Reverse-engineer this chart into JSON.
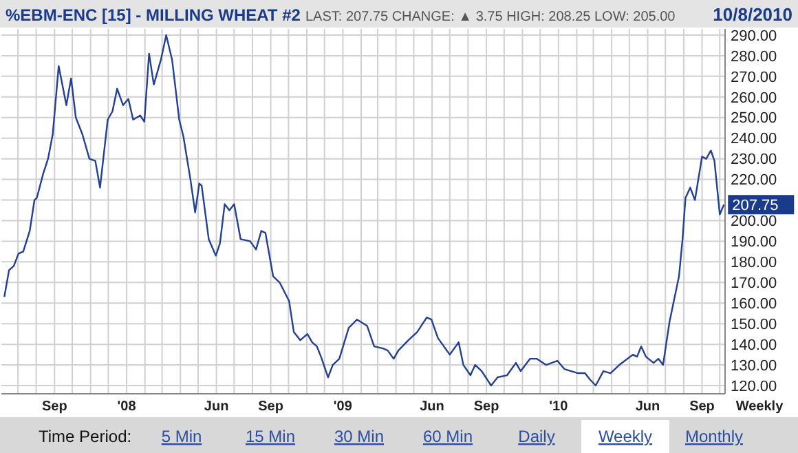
{
  "chart_data": {
    "type": "line",
    "title": "%EBM-ENC [15] - MILLING WHEAT #2",
    "subtitle": "LAST: 207.75  CHANGE: ▲ 3.75  HIGH: 208.25  LOW: 205.00",
    "annotations": [
      "10/8/2010",
      "Weekly",
      {
        "text": "207.75",
        "x": "2010-10-08",
        "y": 207.75
      },
      "Time Period:",
      "5 Min",
      "15 Min",
      "30 Min",
      "60 Min",
      "Daily",
      "Weekly",
      "Monthly"
    ],
    "x": [
      "2007-06-08",
      "2007-06-16",
      "2007-06-24",
      "2007-07-02",
      "2007-07-10",
      "2007-07-21",
      "2007-07-29",
      "2007-08-02",
      "2007-08-13",
      "2007-08-21",
      "2007-08-29",
      "2007-09-08",
      "2007-09-21",
      "2007-09-29",
      "2007-10-07",
      "2007-10-18",
      "2007-10-30",
      "2007-11-09",
      "2007-11-17",
      "2007-11-30",
      "2007-12-08",
      "2007-12-16",
      "2007-12-26",
      "2008-01-04",
      "2008-01-12",
      "2008-01-24",
      "2008-01-31",
      "2008-02-08",
      "2008-02-16",
      "2008-02-28",
      "2008-03-08",
      "2008-03-18",
      "2008-03-30",
      "2008-04-06",
      "2008-04-18",
      "2008-04-26",
      "2008-05-03",
      "2008-05-07",
      "2008-05-19",
      "2008-05-31",
      "2008-06-07",
      "2008-06-15",
      "2008-06-23",
      "2008-07-01",
      "2008-07-12",
      "2008-07-28",
      "2008-08-07",
      "2008-08-16",
      "2008-08-23",
      "2008-09-05",
      "2008-09-16",
      "2008-10-02",
      "2008-10-10",
      "2008-10-21",
      "2008-11-02",
      "2008-11-10",
      "2008-11-18",
      "2008-11-25",
      "2008-12-07",
      "2008-12-15",
      "2008-12-26",
      "2009-01-11",
      "2009-01-25",
      "2009-02-11",
      "2009-02-23",
      "2009-03-10",
      "2009-03-18",
      "2009-03-28",
      "2009-04-05",
      "2009-04-22",
      "2009-05-07",
      "2009-05-23",
      "2009-05-31",
      "2009-06-11",
      "2009-07-01",
      "2009-07-16",
      "2009-07-24",
      "2009-08-05",
      "2009-08-13",
      "2009-08-24",
      "2009-09-09",
      "2009-09-20",
      "2009-10-06",
      "2009-10-21",
      "2009-10-29",
      "2009-11-14",
      "2009-11-25",
      "2009-12-11",
      "2009-12-30",
      "2010-01-11",
      "2010-02-03",
      "2010-02-15",
      "2010-02-23",
      "2010-03-05",
      "2010-03-18",
      "2010-03-30",
      "2010-04-14",
      "2010-05-07",
      "2010-05-14",
      "2010-05-21",
      "2010-05-29",
      "2010-06-11",
      "2010-06-19",
      "2010-06-27",
      "2010-07-08",
      "2010-07-24",
      "2010-07-30",
      "2010-08-04",
      "2010-08-12",
      "2010-08-20",
      "2010-09-01",
      "2010-09-08",
      "2010-09-16",
      "2010-09-22",
      "2010-10-01",
      "2010-10-08"
    ],
    "series": [
      {
        "color": "#24408e",
        "values": [
          163,
          176,
          178,
          184,
          185,
          195,
          210,
          211,
          223,
          230,
          242,
          275,
          256,
          269,
          250,
          242,
          230,
          229,
          216,
          249,
          253,
          264,
          256,
          259,
          249,
          251,
          248,
          281,
          266,
          278,
          290,
          278,
          249,
          241,
          220,
          204,
          218,
          217,
          191,
          183,
          189,
          208,
          205,
          208,
          191,
          190,
          186,
          195,
          194,
          173,
          170,
          161,
          146,
          142,
          145,
          141,
          139,
          134,
          124,
          130,
          133,
          148,
          152,
          149,
          139,
          138,
          137,
          133,
          137,
          142,
          146,
          153,
          152,
          143,
          135,
          141,
          130,
          125,
          130,
          127,
          120,
          124,
          125,
          131,
          127,
          133,
          133,
          130,
          132,
          128,
          126,
          126,
          123,
          120,
          127,
          126,
          130,
          135,
          134,
          139,
          134,
          131,
          133,
          130,
          151,
          173,
          191,
          211,
          216,
          210,
          231,
          230,
          234,
          229,
          203,
          207.75
        ]
      }
    ],
    "xlim": [
      "2007-06-03",
      "2010-10-10"
    ],
    "ylim": [
      116,
      293
    ],
    "xticks": [
      {
        "value": "2007-09-01",
        "label": "Sep"
      },
      {
        "value": "2008-01-01",
        "label": "'08"
      },
      {
        "value": "2008-06-01",
        "label": "Jun"
      },
      {
        "value": "2008-09-01",
        "label": "Sep"
      },
      {
        "value": "2009-01-01",
        "label": "'09"
      },
      {
        "value": "2009-06-01",
        "label": "Jun"
      },
      {
        "value": "2009-09-01",
        "label": "Sep"
      },
      {
        "value": "2010-01-01",
        "label": "'10"
      },
      {
        "value": "2010-06-01",
        "label": "Jun"
      },
      {
        "value": "2010-09-01",
        "label": "Sep"
      }
    ],
    "yticks": [
      {
        "value": 120,
        "label": "120.00"
      },
      {
        "value": 130,
        "label": "130.00"
      },
      {
        "value": 140,
        "label": "140.00"
      },
      {
        "value": 150,
        "label": "150.00"
      },
      {
        "value": 160,
        "label": "160.00"
      },
      {
        "value": 170,
        "label": "170.00"
      },
      {
        "value": 180,
        "label": "180.00"
      },
      {
        "value": 190,
        "label": "190.00"
      },
      {
        "value": 200,
        "label": "200.00"
      },
      {
        "value": 210,
        "label": null
      },
      {
        "value": 220,
        "label": "220.00"
      },
      {
        "value": 230,
        "label": "230.00"
      },
      {
        "value": 240,
        "label": "240.00"
      },
      {
        "value": 250,
        "label": "250.00"
      },
      {
        "value": 260,
        "label": "260.00"
      },
      {
        "value": 270,
        "label": "270.00"
      },
      {
        "value": 280,
        "label": "280.00"
      },
      {
        "value": 290,
        "label": "290.00"
      }
    ],
    "grid": true,
    "marker": "none",
    "line_style": "solid"
  }
}
